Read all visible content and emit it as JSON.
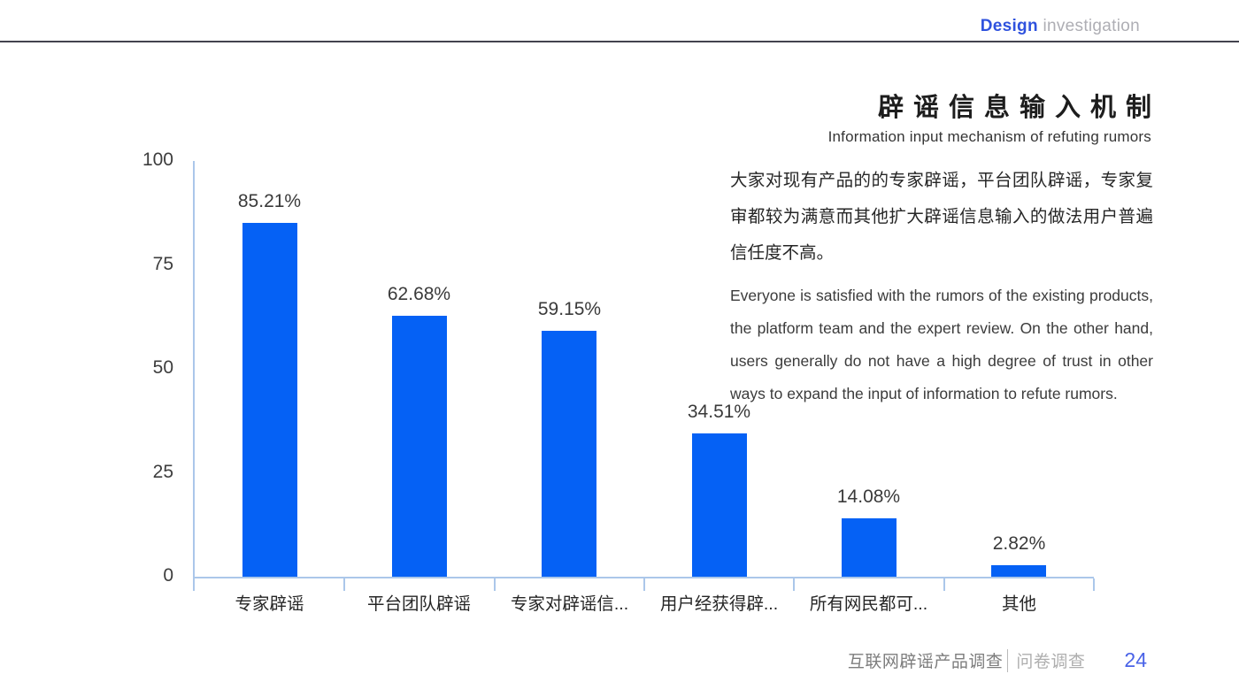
{
  "header": {
    "brand_primary": "Design",
    "brand_secondary": "investigation"
  },
  "title": {
    "zh": "辟谣信息输入机制",
    "en": "Information input mechanism of refuting rumors"
  },
  "description": {
    "zh": "大家对现有产品的的专家辟谣，平台团队辟谣，专家复审都较为满意而其他扩大辟谣信息输入的做法用户普遍信任度不高。",
    "en": "Everyone is satisfied with the rumors of the existing products, the platform team and the expert review. On the other hand, users generally do not have a high degree of trust in other ways to expand the input of information to refute rumors."
  },
  "chart_data": {
    "type": "bar",
    "categories": [
      "专家辟谣",
      "平台团队辟谣",
      "专家对辟谣信...",
      "用户经获得辟...",
      "所有网民都可...",
      "其他"
    ],
    "values": [
      85.21,
      62.68,
      59.15,
      34.51,
      14.08,
      2.82
    ],
    "value_labels": [
      "85.21%",
      "62.68%",
      "59.15%",
      "34.51%",
      "14.08%",
      "2.82%"
    ],
    "y_ticks": [
      0,
      25,
      50,
      75,
      100
    ],
    "ylim": [
      0,
      100
    ],
    "xlabel": "",
    "ylabel": "",
    "grid": false,
    "legend_position": "none",
    "bar_color": "#0561f5",
    "axis_color": "#abc7ea"
  },
  "footer": {
    "left_label": "互联网辟谣产品调查",
    "separator": "|",
    "right_label": "问卷调查",
    "page_number": "24"
  },
  "colors": {
    "accent_blue": "#2f52de",
    "bar_blue": "#0561f5",
    "axis_light_blue": "#abc7ea",
    "page_number_blue": "#4a63e7",
    "header_rule": "#43434e"
  }
}
